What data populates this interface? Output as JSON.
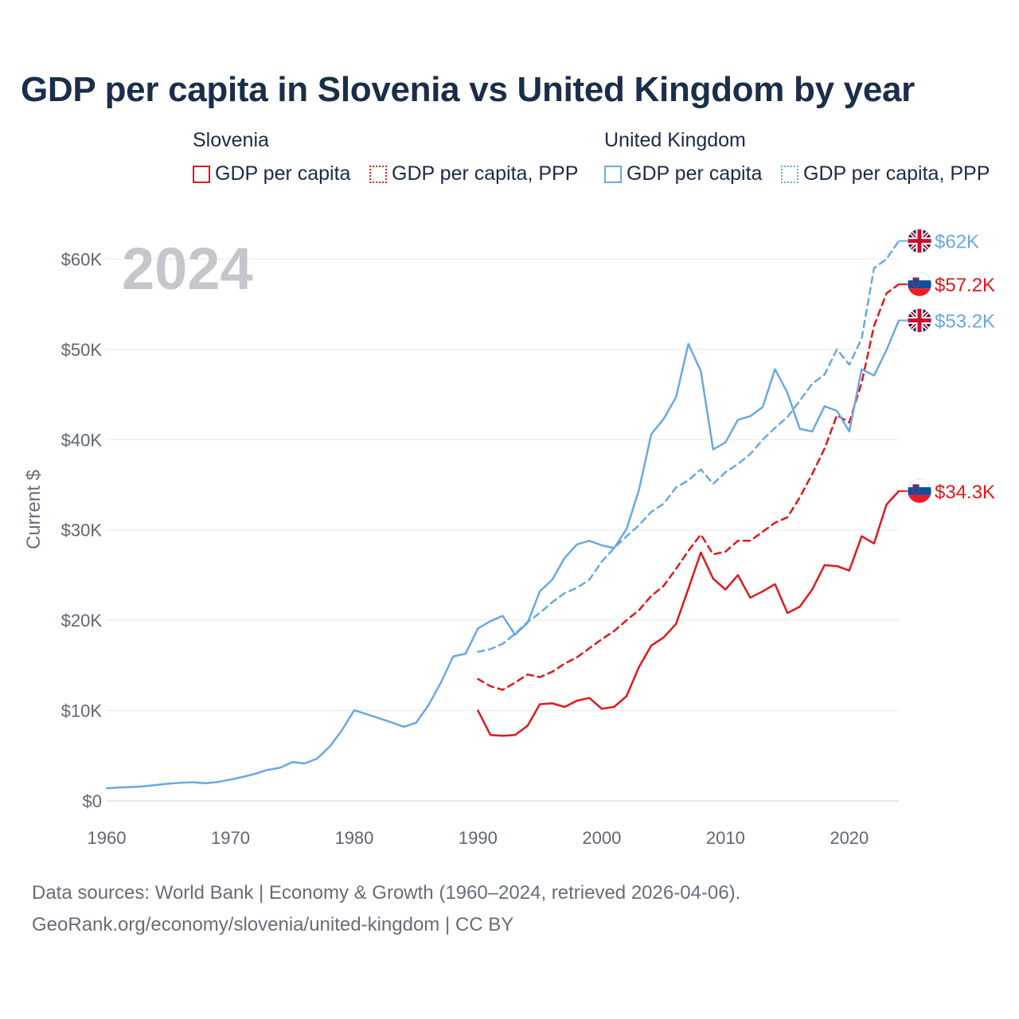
{
  "title": "GDP per capita in Slovenia vs United Kingdom by year",
  "legend": {
    "groups": [
      {
        "country": "Slovenia",
        "color": "#e3171b",
        "items": [
          {
            "label": "GDP per capita",
            "style": "solid"
          },
          {
            "label": "GDP per capita, PPP",
            "style": "dotted"
          }
        ]
      },
      {
        "country": "United Kingdom",
        "color": "#6aa8e4",
        "items": [
          {
            "label": "GDP per capita",
            "style": "solid"
          },
          {
            "label": "GDP per capita, PPP",
            "style": "dotted"
          }
        ]
      }
    ]
  },
  "footer": {
    "line1": "Data sources: World Bank | Economy & Growth (1960–2024, retrieved 2026-04-06).",
    "line2": "GeoRank.org/economy/slovenia/united-kingdom | CC BY"
  },
  "chart_data": {
    "type": "line",
    "title": "GDP per capita in Slovenia vs United Kingdom by year",
    "year_label": "2024",
    "xlabel": "",
    "ylabel": "Current $",
    "xlim": [
      1960,
      2024
    ],
    "ylim": [
      0,
      64000
    ],
    "x_ticks": [
      1960,
      1970,
      1980,
      1990,
      2000,
      2010,
      2020
    ],
    "y_ticks": [
      {
        "value": 0,
        "label": "$0"
      },
      {
        "value": 10000,
        "label": "$10K"
      },
      {
        "value": 20000,
        "label": "$20K"
      },
      {
        "value": 30000,
        "label": "$30K"
      },
      {
        "value": 40000,
        "label": "$40K"
      },
      {
        "value": 50000,
        "label": "$50K"
      },
      {
        "value": 60000,
        "label": "$60K"
      }
    ],
    "grid": true,
    "series": [
      {
        "name": "United Kingdom GDP per capita, PPP",
        "country": "United Kingdom",
        "color": "#6aa8e4",
        "style": "dashed",
        "end_label": "$62K",
        "flag": "uk",
        "start_year": 1990,
        "values": [
          16500,
          16800,
          17400,
          18500,
          19800,
          20800,
          22000,
          23000,
          23600,
          24500,
          26500,
          28000,
          29300,
          30500,
          32000,
          32900,
          34700,
          35500,
          36700,
          35100,
          36400,
          37300,
          38400,
          40000,
          41300,
          42500,
          44300,
          46200,
          47200,
          50000,
          48300,
          51200,
          59000,
          60000,
          62000
        ]
      },
      {
        "name": "Slovenia GDP per capita, PPP",
        "country": "Slovenia",
        "color": "#e3171b",
        "style": "dashed",
        "end_label": "$57.2K",
        "flag": "si",
        "start_year": 1990,
        "values": [
          13500,
          12700,
          12300,
          13100,
          14000,
          13700,
          14300,
          15200,
          15900,
          16900,
          17900,
          18800,
          20000,
          21100,
          22700,
          23800,
          25700,
          27700,
          29500,
          27300,
          27600,
          28800,
          28800,
          29800,
          30800,
          31400,
          33600,
          36200,
          39000,
          42700,
          41900,
          46300,
          52600,
          56200,
          57200
        ]
      },
      {
        "name": "United Kingdom GDP per capita",
        "country": "United Kingdom",
        "color": "#6aa8e4",
        "style": "solid",
        "end_label": "$53.2K",
        "flag": "uk",
        "start_year": 1960,
        "values": [
          1400,
          1470,
          1530,
          1610,
          1760,
          1900,
          2000,
          2060,
          1950,
          2100,
          2350,
          2650,
          3000,
          3430,
          3670,
          4300,
          4140,
          4680,
          5980,
          7800,
          10030,
          9600,
          9150,
          8700,
          8200,
          8650,
          10600,
          13100,
          16000,
          16300,
          19100,
          19900,
          20500,
          18400,
          19700,
          23200,
          24500,
          26900,
          28400,
          28800,
          28300,
          28000,
          30100,
          34400,
          40600,
          42300,
          44700,
          50600,
          47600,
          38900,
          39700,
          42200,
          42600,
          43600,
          47800,
          45200,
          41200,
          40900,
          43700,
          43200,
          40900,
          47800,
          47100,
          49900,
          53200
        ]
      },
      {
        "name": "Slovenia GDP per capita",
        "country": "Slovenia",
        "color": "#e3171b",
        "style": "solid",
        "end_label": "$34.3K",
        "flag": "si",
        "start_year": 1990,
        "values": [
          10000,
          7300,
          7200,
          7300,
          8300,
          10700,
          10800,
          10400,
          11100,
          11400,
          10200,
          10400,
          11600,
          14800,
          17200,
          18100,
          19600,
          23500,
          27500,
          24600,
          23400,
          25000,
          22500,
          23200,
          24000,
          20800,
          21500,
          23400,
          26100,
          26000,
          25500,
          29300,
          28500,
          32800,
          34300
        ]
      }
    ]
  }
}
